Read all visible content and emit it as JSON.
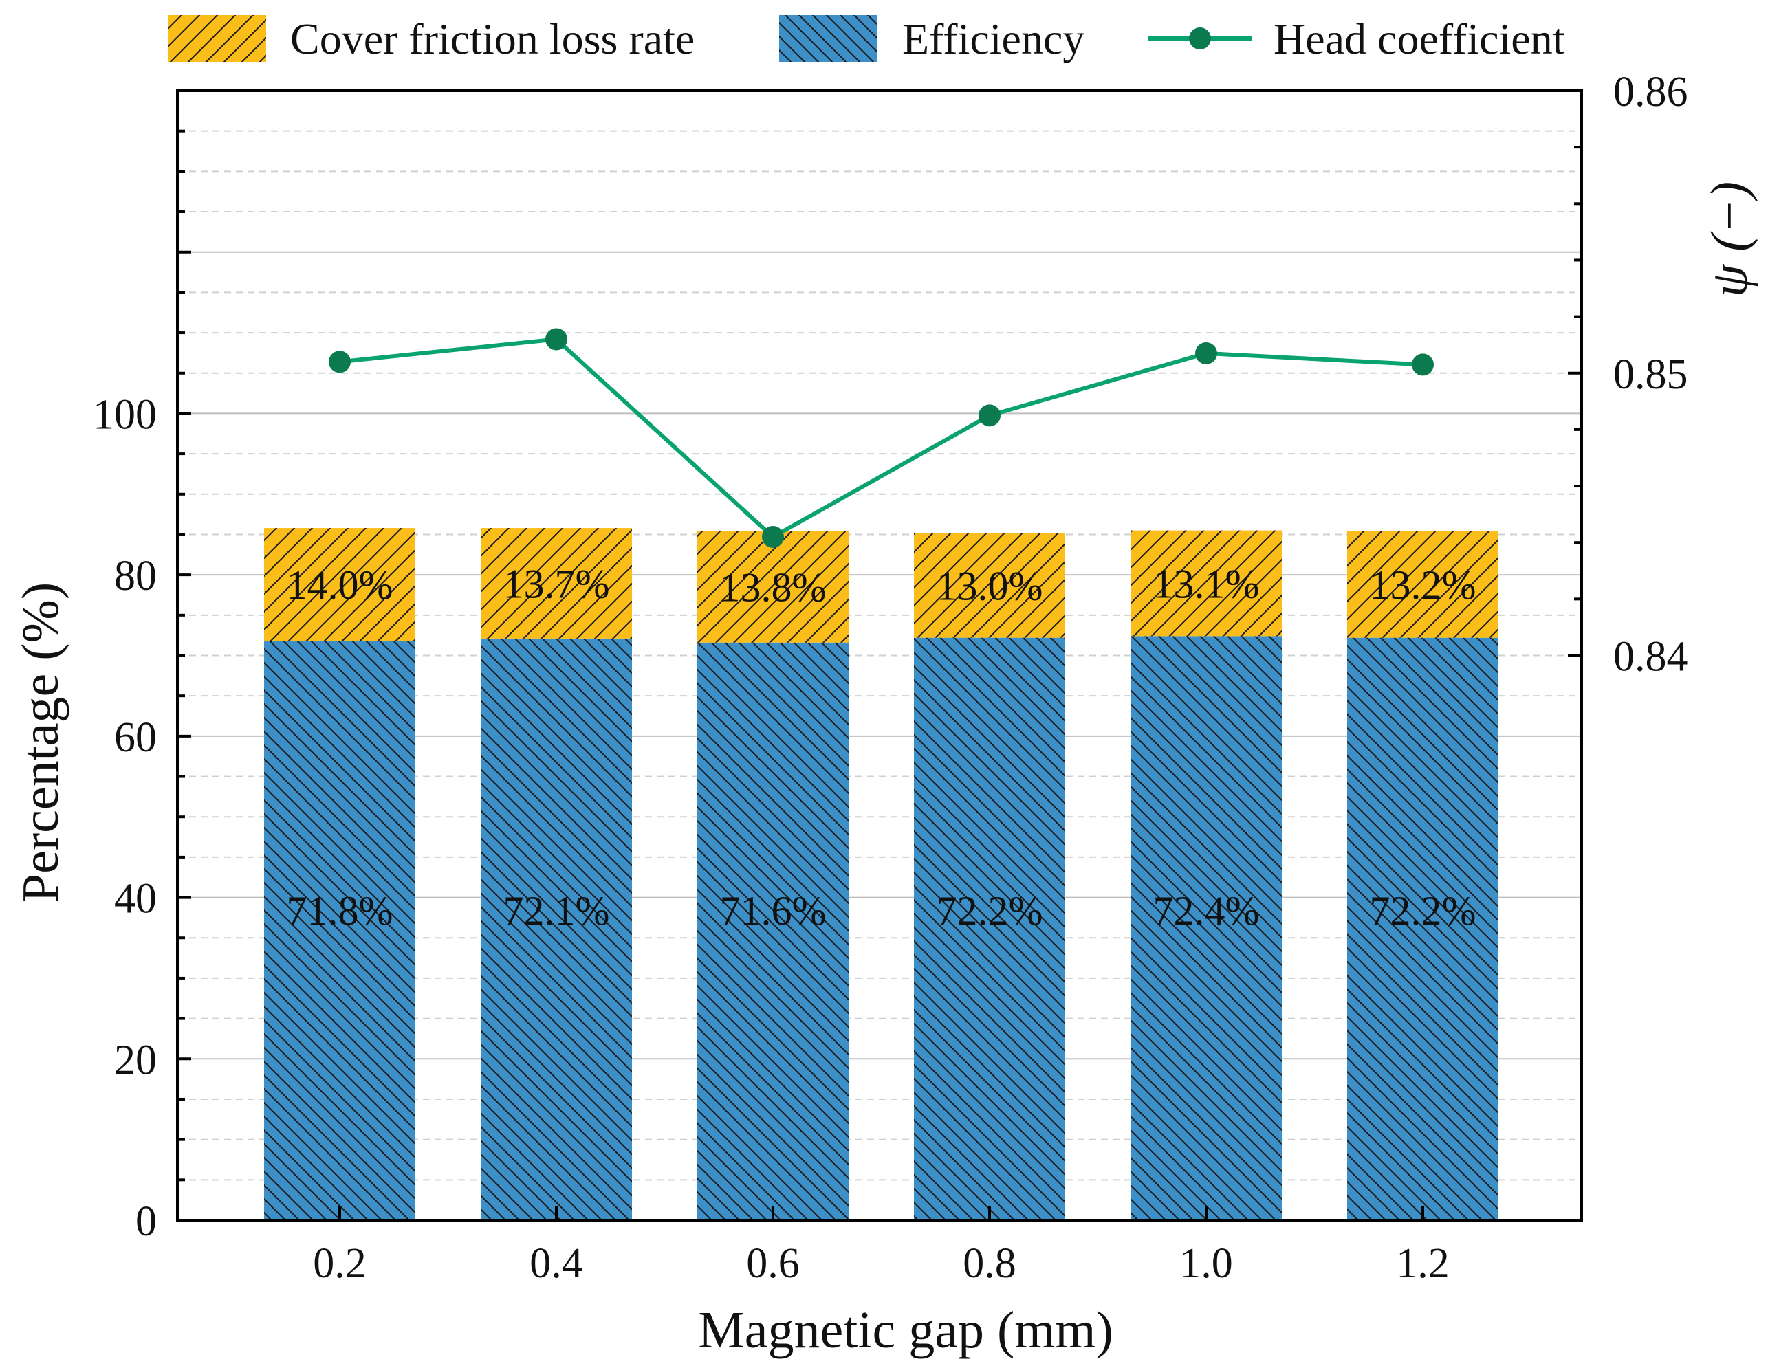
{
  "chart_data": {
    "type": "bar",
    "subtype": "stacked-bar-with-line-secondary-axis",
    "title": "",
    "xlabel": "Magnetic gap (mm)",
    "ylabel": "Percentage (%)",
    "y2label": "ψ (−)",
    "categories": [
      "0.2",
      "0.4",
      "0.6",
      "0.8",
      "1.0",
      "1.2"
    ],
    "ylim": [
      0,
      140
    ],
    "yticks": [
      "0",
      "20",
      "40",
      "60",
      "80",
      "100"
    ],
    "y2lim": [
      0.82,
      0.86
    ],
    "y2ticks": [
      "0.84",
      "0.85",
      "0.86"
    ],
    "grid": true,
    "legend_position": "top",
    "series": [
      {
        "name": "Efficiency",
        "kind": "bar",
        "values": [
          71.8,
          72.1,
          71.6,
          72.2,
          72.4,
          72.2
        ],
        "labels": [
          "71.8%",
          "72.1%",
          "71.6%",
          "72.2%",
          "72.4%",
          "72.2%"
        ],
        "color": "#3d8fc7",
        "hatch": "backslash"
      },
      {
        "name": "Cover friction loss rate",
        "kind": "bar",
        "values": [
          14.0,
          13.7,
          13.8,
          13.0,
          13.1,
          13.2
        ],
        "labels": [
          "14.0%",
          "13.7%",
          "13.8%",
          "13.0%",
          "13.1%",
          "13.2%"
        ],
        "color": "#fbbd1a",
        "hatch": "slash"
      },
      {
        "name": "Head coefficient",
        "kind": "line",
        "axis": "y2",
        "values": [
          0.8504,
          0.8512,
          0.8442,
          0.8485,
          0.8507,
          0.8503
        ],
        "color": "#0aa36e",
        "marker_color": "#0c7a4f"
      }
    ],
    "legend": [
      {
        "label": "Cover friction loss rate",
        "series": "Cover friction loss rate"
      },
      {
        "label": "Efficiency",
        "series": "Efficiency"
      },
      {
        "label": "Head coefficient",
        "series": "Head coefficient"
      }
    ]
  }
}
